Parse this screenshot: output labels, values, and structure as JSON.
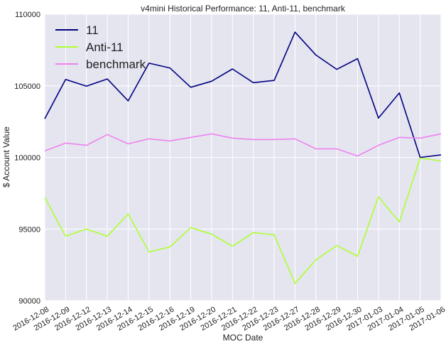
{
  "chart_data": {
    "type": "line",
    "title": "v4mini Historical Performance: 11, Anti-11, benchmark",
    "xlabel": "MOC Date",
    "ylabel": "$ Account Value",
    "ylim": [
      90000,
      110000
    ],
    "yticks": [
      90000,
      95000,
      100000,
      105000,
      110000
    ],
    "ytick_labels": [
      "90000",
      "95000",
      "100000",
      "105000",
      "110000"
    ],
    "categories": [
      "2016-12-08",
      "2016-12-09",
      "2016-12-12",
      "2016-12-13",
      "2016-12-14",
      "2016-12-15",
      "2016-12-16",
      "2016-12-19",
      "2016-12-20",
      "2016-12-21",
      "2016-12-22",
      "2016-12-23",
      "2016-12-27",
      "2016-12-28",
      "2016-12-29",
      "2016-12-30",
      "2017-01-03",
      "2017-01-04",
      "2017-01-05",
      "2017-01-06"
    ],
    "grid": true,
    "background": "#e5e5f0",
    "legend_position": "top-left",
    "series": [
      {
        "name": "11",
        "color": "#000080",
        "values": [
          102700,
          105450,
          104980,
          105480,
          103950,
          106580,
          106250,
          104900,
          105320,
          106180,
          105220,
          105380,
          108750,
          107150,
          106150,
          106900,
          102750,
          104500,
          100000,
          100180
        ]
      },
      {
        "name": "Anti-11",
        "color": "#adff2f",
        "values": [
          97200,
          94500,
          95000,
          94500,
          96050,
          93400,
          93750,
          95100,
          94650,
          93800,
          94750,
          94600,
          91200,
          92850,
          93850,
          93100,
          97250,
          95500,
          99950,
          99750
        ]
      },
      {
        "name": "benchmark",
        "color": "#ee82ee",
        "values": [
          100450,
          101000,
          100850,
          101600,
          100950,
          101300,
          101150,
          101400,
          101650,
          101350,
          101250,
          101250,
          101300,
          100600,
          100600,
          100100,
          100850,
          101400,
          101350,
          101650
        ]
      }
    ]
  }
}
